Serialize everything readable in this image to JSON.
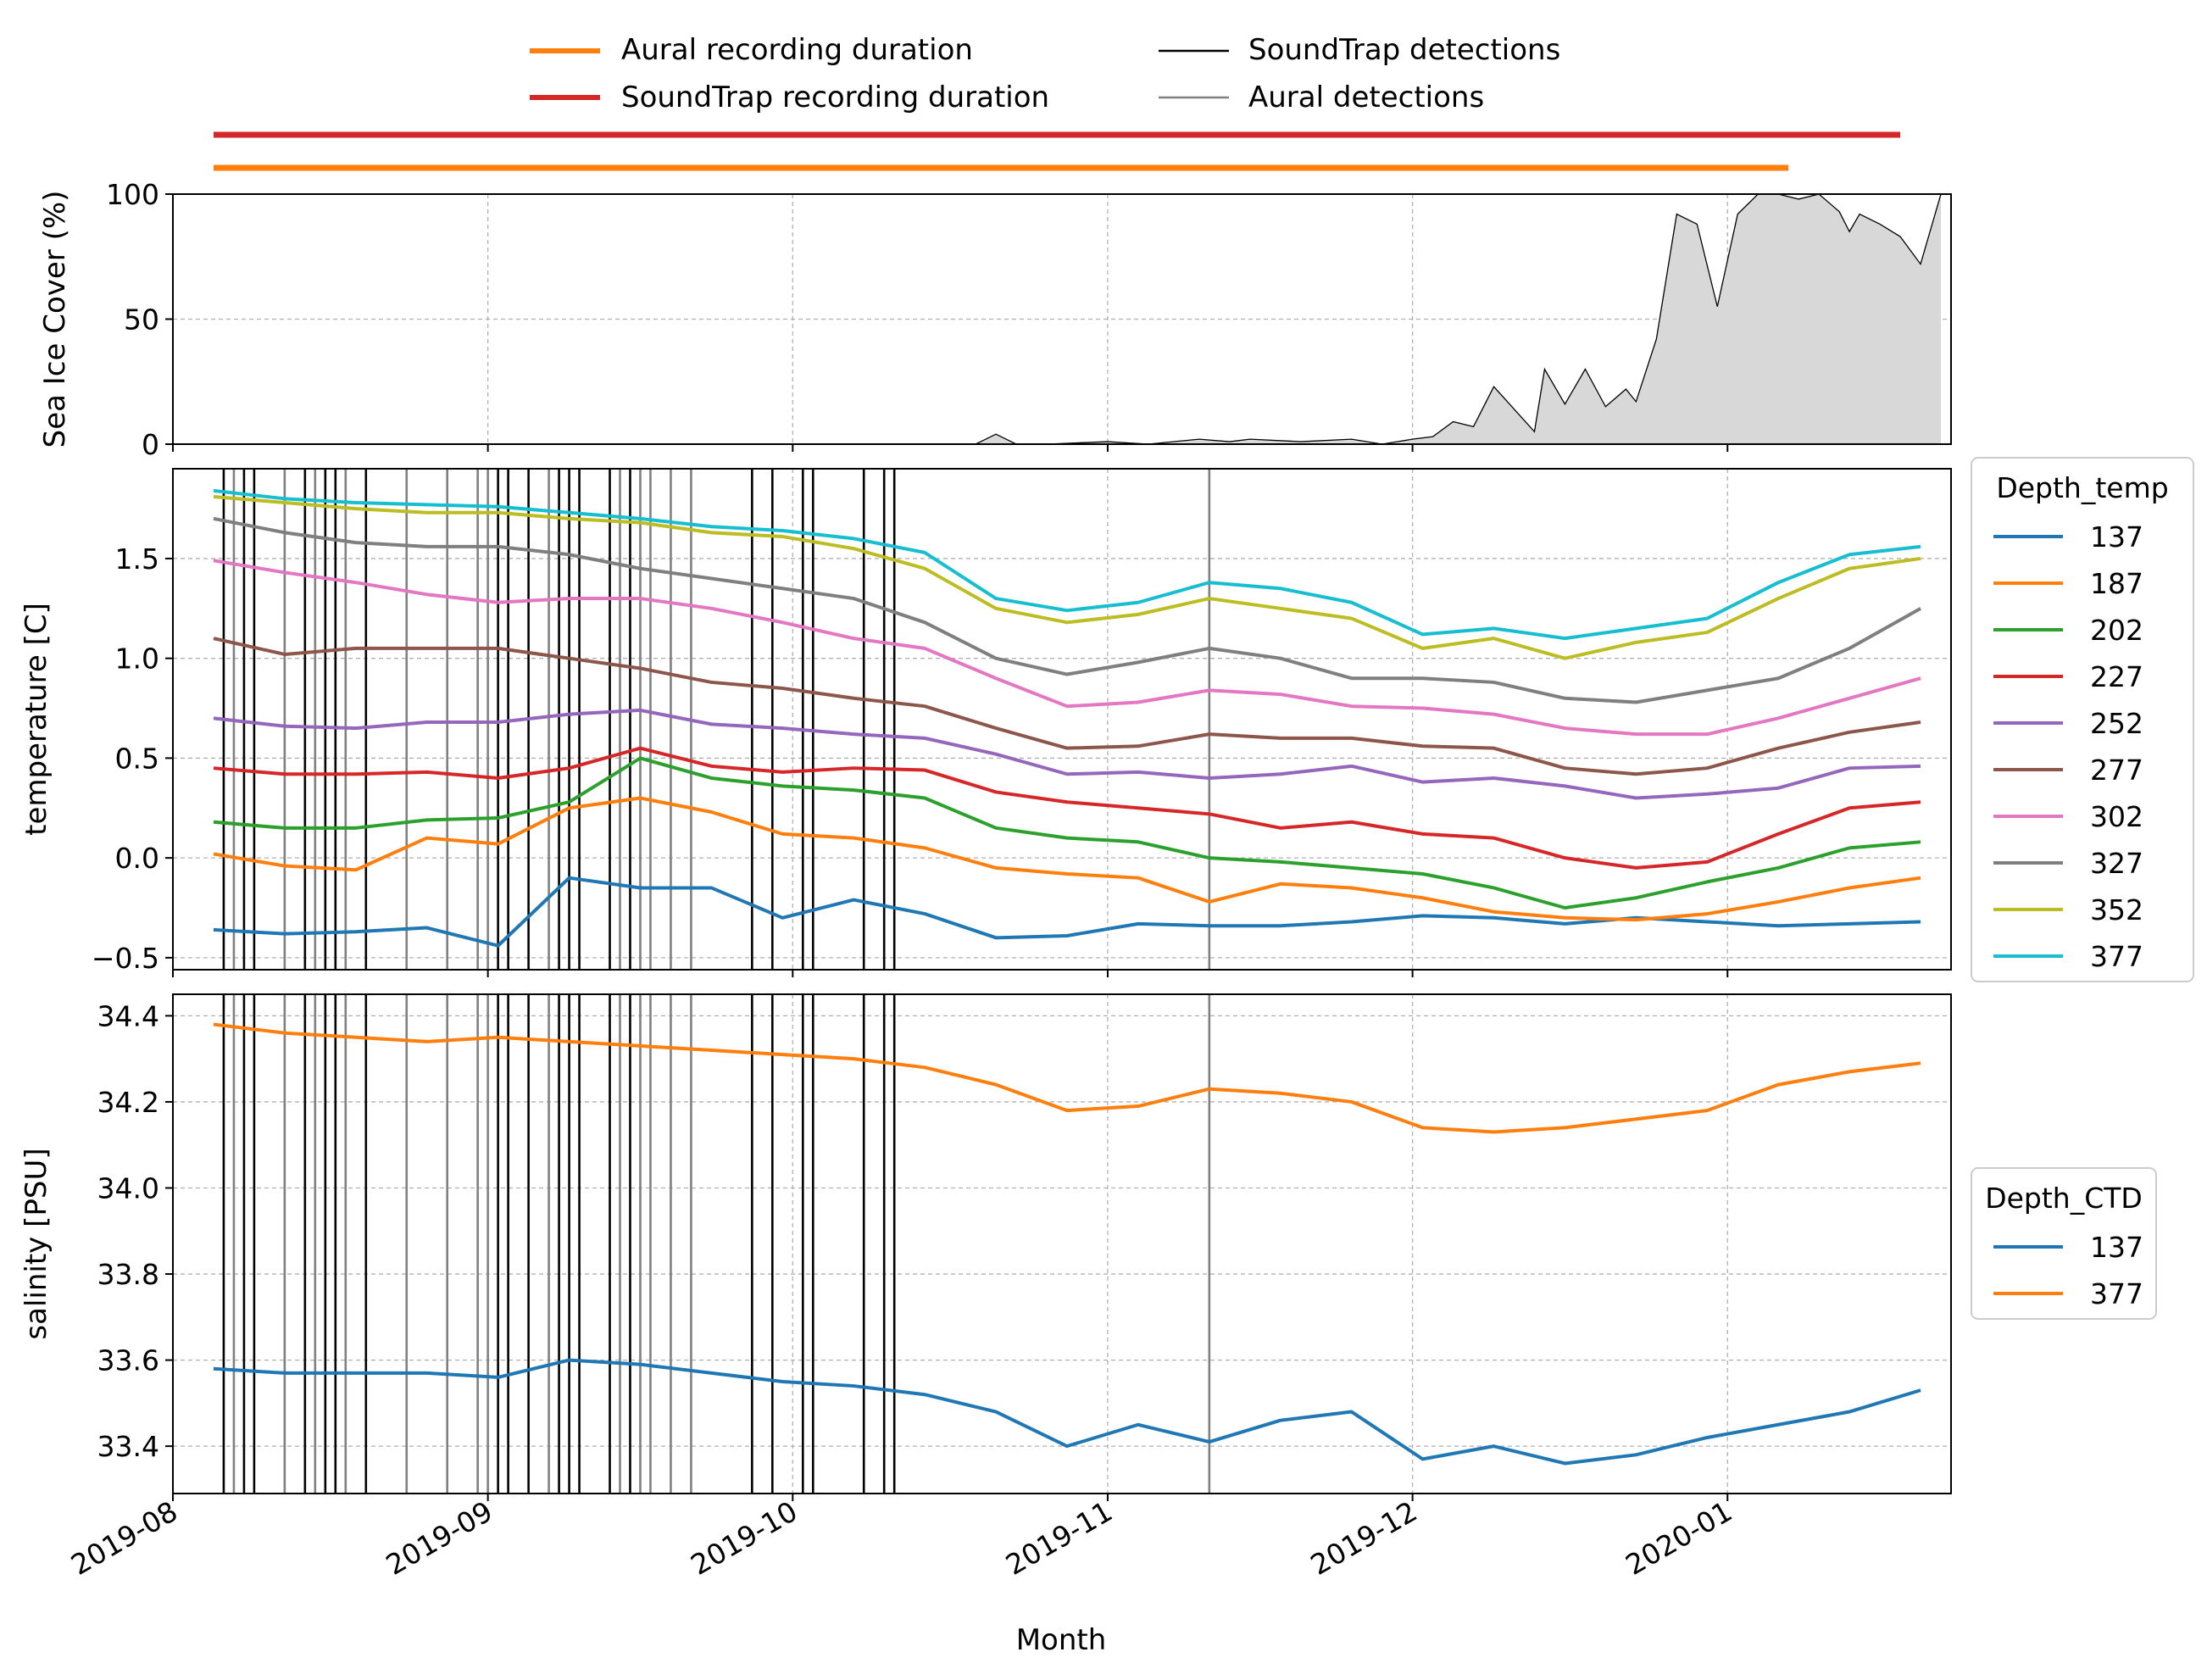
{
  "top_legend": {
    "entries": [
      {
        "label": "Aural recording duration",
        "color": "#ff7f0e",
        "style": "thick"
      },
      {
        "label": "SoundTrap recording duration",
        "color": "#d62728",
        "style": "thick"
      },
      {
        "label": "SoundTrap detections",
        "color": "#000000",
        "style": "thin"
      },
      {
        "label": "Aural detections",
        "color": "#808080",
        "style": "thin"
      }
    ]
  },
  "chart_data": [
    {
      "type": "area",
      "panel": "ice",
      "ylabel": "Sea Ice Cover (%)",
      "ylim": [
        0,
        100
      ],
      "yticks": [
        0,
        50,
        100
      ],
      "fill_color": "#d8d8d8",
      "line_color": "#000000",
      "x": [
        "2019-10-19",
        "2019-10-21",
        "2019-10-23",
        "2019-10-26",
        "2019-11-01",
        "2019-11-05",
        "2019-11-10",
        "2019-11-13",
        "2019-11-15",
        "2019-11-20",
        "2019-11-25",
        "2019-11-28",
        "2019-12-01",
        "2019-12-03",
        "2019-12-05",
        "2019-12-07",
        "2019-12-09",
        "2019-12-11",
        "2019-12-13",
        "2019-12-14",
        "2019-12-16",
        "2019-12-18",
        "2019-12-20",
        "2019-12-22",
        "2019-12-23",
        "2019-12-25",
        "2019-12-27",
        "2019-12-29",
        "2019-12-31",
        "2020-01-02",
        "2020-01-04",
        "2020-01-06",
        "2020-01-08",
        "2020-01-10",
        "2020-01-12",
        "2020-01-13",
        "2020-01-14",
        "2020-01-16",
        "2020-01-18",
        "2020-01-20",
        "2020-01-22"
      ],
      "y": [
        0,
        4,
        0,
        0,
        1,
        0,
        2,
        1,
        2,
        1,
        2,
        0,
        2,
        3,
        9,
        7,
        23,
        14,
        5,
        30,
        16,
        30,
        15,
        22,
        17,
        42,
        92,
        88,
        55,
        92,
        100,
        100,
        98,
        100,
        93,
        85,
        92,
        88,
        83,
        72,
        100
      ]
    },
    {
      "type": "line",
      "panel": "temperature",
      "ylabel": "temperature [C]",
      "ylim": [
        -0.56,
        1.95
      ],
      "yticks": [
        -0.5,
        0.0,
        0.5,
        1.0,
        1.5
      ],
      "ytick_labels": [
        "−0.5",
        "0.0",
        "0.5",
        "1.0",
        "1.5"
      ],
      "legend_title": "Depth_temp",
      "x": [
        "2019-08-05",
        "2019-08-12",
        "2019-08-19",
        "2019-08-26",
        "2019-09-02",
        "2019-09-09",
        "2019-09-16",
        "2019-09-23",
        "2019-09-30",
        "2019-10-07",
        "2019-10-14",
        "2019-10-21",
        "2019-10-28",
        "2019-11-04",
        "2019-11-11",
        "2019-11-18",
        "2019-11-25",
        "2019-12-02",
        "2019-12-09",
        "2019-12-16",
        "2019-12-23",
        "2019-12-30",
        "2020-01-06",
        "2020-01-13",
        "2020-01-20"
      ],
      "series": [
        {
          "name": "137",
          "color": "#1f77b4",
          "values": [
            -0.36,
            -0.38,
            -0.37,
            -0.35,
            -0.44,
            -0.1,
            -0.15,
            -0.15,
            -0.3,
            -0.21,
            -0.28,
            -0.4,
            -0.39,
            -0.33,
            -0.34,
            -0.34,
            -0.32,
            -0.29,
            -0.3,
            -0.33,
            -0.3,
            -0.32,
            -0.34,
            -0.33,
            -0.32
          ]
        },
        {
          "name": "187",
          "color": "#ff7f0e",
          "values": [
            0.02,
            -0.04,
            -0.06,
            0.1,
            0.07,
            0.25,
            0.3,
            0.23,
            0.12,
            0.1,
            0.05,
            -0.05,
            -0.08,
            -0.1,
            -0.22,
            -0.13,
            -0.15,
            -0.2,
            -0.27,
            -0.3,
            -0.31,
            -0.28,
            -0.22,
            -0.15,
            -0.1
          ]
        },
        {
          "name": "202",
          "color": "#2ca02c",
          "values": [
            0.18,
            0.15,
            0.15,
            0.19,
            0.2,
            0.28,
            0.5,
            0.4,
            0.36,
            0.34,
            0.3,
            0.15,
            0.1,
            0.08,
            0.0,
            -0.02,
            -0.05,
            -0.08,
            -0.15,
            -0.25,
            -0.2,
            -0.12,
            -0.05,
            0.05,
            0.08
          ]
        },
        {
          "name": "227",
          "color": "#d62728",
          "values": [
            0.45,
            0.42,
            0.42,
            0.43,
            0.4,
            0.45,
            0.55,
            0.46,
            0.43,
            0.45,
            0.44,
            0.33,
            0.28,
            0.25,
            0.22,
            0.15,
            0.18,
            0.12,
            0.1,
            0.0,
            -0.05,
            -0.02,
            0.12,
            0.25,
            0.28
          ]
        },
        {
          "name": "252",
          "color": "#9467bd",
          "values": [
            0.7,
            0.66,
            0.65,
            0.68,
            0.68,
            0.72,
            0.74,
            0.67,
            0.65,
            0.62,
            0.6,
            0.52,
            0.42,
            0.43,
            0.4,
            0.42,
            0.46,
            0.38,
            0.4,
            0.36,
            0.3,
            0.32,
            0.35,
            0.45,
            0.46
          ]
        },
        {
          "name": "277",
          "color": "#8c564b",
          "values": [
            1.1,
            1.02,
            1.05,
            1.05,
            1.05,
            1.0,
            0.95,
            0.88,
            0.85,
            0.8,
            0.76,
            0.65,
            0.55,
            0.56,
            0.62,
            0.6,
            0.6,
            0.56,
            0.55,
            0.45,
            0.42,
            0.45,
            0.55,
            0.63,
            0.68
          ]
        },
        {
          "name": "302",
          "color": "#e377c2",
          "values": [
            1.49,
            1.43,
            1.38,
            1.32,
            1.28,
            1.3,
            1.3,
            1.25,
            1.18,
            1.1,
            1.05,
            0.9,
            0.76,
            0.78,
            0.84,
            0.82,
            0.76,
            0.75,
            0.72,
            0.65,
            0.62,
            0.62,
            0.7,
            0.8,
            0.9
          ]
        },
        {
          "name": "327",
          "color": "#7f7f7f",
          "values": [
            1.7,
            1.63,
            1.58,
            1.56,
            1.56,
            1.52,
            1.45,
            1.4,
            1.35,
            1.3,
            1.18,
            1.0,
            0.92,
            0.98,
            1.05,
            1.0,
            0.9,
            0.9,
            0.88,
            0.8,
            0.78,
            0.84,
            0.9,
            1.05,
            1.25
          ]
        },
        {
          "name": "352",
          "color": "#bcbd22",
          "values": [
            1.81,
            1.78,
            1.75,
            1.73,
            1.73,
            1.7,
            1.68,
            1.63,
            1.61,
            1.55,
            1.45,
            1.25,
            1.18,
            1.22,
            1.3,
            1.25,
            1.2,
            1.05,
            1.1,
            1.0,
            1.08,
            1.13,
            1.3,
            1.45,
            1.5
          ]
        },
        {
          "name": "377",
          "color": "#17becf",
          "values": [
            1.84,
            1.8,
            1.78,
            1.77,
            1.76,
            1.73,
            1.7,
            1.66,
            1.64,
            1.6,
            1.53,
            1.3,
            1.24,
            1.28,
            1.38,
            1.35,
            1.28,
            1.12,
            1.15,
            1.1,
            1.15,
            1.2,
            1.38,
            1.52,
            1.56
          ]
        }
      ]
    },
    {
      "type": "line",
      "panel": "salinity",
      "ylabel": "salinity [PSU]",
      "ylim": [
        33.29,
        34.45
      ],
      "yticks": [
        33.4,
        33.6,
        33.8,
        34.0,
        34.2,
        34.4
      ],
      "ytick_labels": [
        "33.4",
        "33.6",
        "33.8",
        "34.0",
        "34.2",
        "34.4"
      ],
      "legend_title": "Depth_CTD",
      "x": [
        "2019-08-05",
        "2019-08-12",
        "2019-08-19",
        "2019-08-26",
        "2019-09-02",
        "2019-09-09",
        "2019-09-16",
        "2019-09-23",
        "2019-09-30",
        "2019-10-07",
        "2019-10-14",
        "2019-10-21",
        "2019-10-28",
        "2019-11-04",
        "2019-11-11",
        "2019-11-18",
        "2019-11-25",
        "2019-12-02",
        "2019-12-09",
        "2019-12-16",
        "2019-12-23",
        "2019-12-30",
        "2020-01-06",
        "2020-01-13",
        "2020-01-20"
      ],
      "series": [
        {
          "name": "137",
          "color": "#1f77b4",
          "values": [
            33.58,
            33.57,
            33.57,
            33.57,
            33.56,
            33.6,
            33.59,
            33.57,
            33.55,
            33.54,
            33.52,
            33.48,
            33.4,
            33.45,
            33.41,
            33.46,
            33.48,
            33.37,
            33.4,
            33.36,
            33.38,
            33.42,
            33.45,
            33.48,
            33.53
          ]
        },
        {
          "name": "377",
          "color": "#ff7f0e",
          "values": [
            34.38,
            34.36,
            34.35,
            34.34,
            34.35,
            34.34,
            34.33,
            34.32,
            34.31,
            34.3,
            34.28,
            34.24,
            34.18,
            34.19,
            34.23,
            34.22,
            34.2,
            34.14,
            34.13,
            34.14,
            34.16,
            34.18,
            34.24,
            34.27,
            34.29
          ]
        }
      ]
    }
  ],
  "recording_bars": [
    {
      "label": "SoundTrap recording duration",
      "color": "#d62728",
      "start": "2019-08-05",
      "end": "2020-01-18"
    },
    {
      "label": "Aural recording duration",
      "color": "#ff7f0e",
      "start": "2019-08-05",
      "end": "2020-01-07"
    }
  ],
  "detections": {
    "soundtrap": [
      "2019-08-06",
      "2019-08-08",
      "2019-08-09",
      "2019-08-14",
      "2019-08-16",
      "2019-08-17",
      "2019-08-20",
      "2019-09-02",
      "2019-09-03",
      "2019-09-05",
      "2019-09-08",
      "2019-09-09",
      "2019-09-10",
      "2019-09-13",
      "2019-09-15",
      "2019-09-27",
      "2019-09-29",
      "2019-10-02",
      "2019-10-03",
      "2019-10-08",
      "2019-10-10",
      "2019-10-11"
    ],
    "aural": [
      "2019-08-07",
      "2019-08-12",
      "2019-08-15",
      "2019-08-18",
      "2019-08-24",
      "2019-08-28",
      "2019-08-31",
      "2019-09-01",
      "2019-09-07",
      "2019-09-14",
      "2019-09-16",
      "2019-09-17",
      "2019-09-19",
      "2019-09-21",
      "2019-11-11"
    ],
    "soundtrap_color": "#000000",
    "aural_color": "#808080"
  },
  "x_axis": {
    "label": "Month",
    "range": [
      "2019-08-01",
      "2020-01-23"
    ],
    "ticks": [
      "2019-08-01",
      "2019-09-01",
      "2019-10-01",
      "2019-11-01",
      "2019-12-01",
      "2020-01-01"
    ],
    "tick_labels": [
      "2019-08",
      "2019-09",
      "2019-10",
      "2019-11",
      "2019-12",
      "2020-01"
    ]
  },
  "grid": true
}
